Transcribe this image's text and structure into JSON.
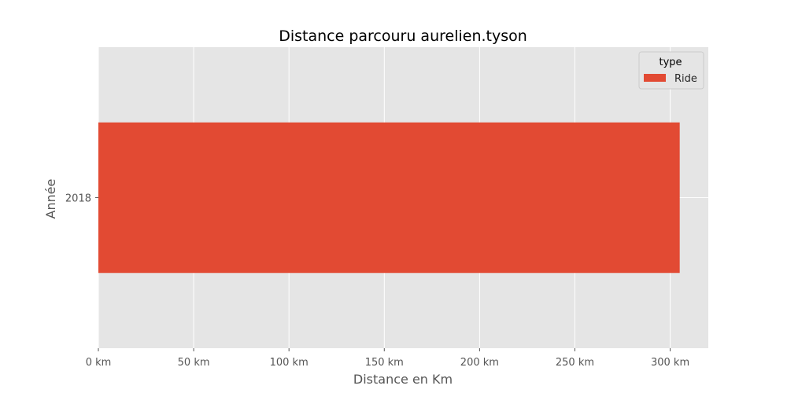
{
  "chart_data": {
    "type": "bar",
    "orientation": "horizontal",
    "title": "Distance parcouru aurelien.tyson",
    "xlabel": "Distance en Km",
    "ylabel": "Année",
    "categories": [
      "2018"
    ],
    "series": [
      {
        "name": "Ride",
        "values": [
          305
        ],
        "color": "#e24a33"
      }
    ],
    "xlim": [
      0,
      320
    ],
    "x_ticks": [
      0,
      50,
      100,
      150,
      200,
      250,
      300
    ],
    "x_tick_labels": [
      "0 km",
      "50 km",
      "100 km",
      "150 km",
      "200 km",
      "250 km",
      "300 km"
    ],
    "legend": {
      "title": "type",
      "position": "top-right"
    },
    "grid": true,
    "background_color": "#e5e5e5",
    "grid_color": "#ffffff"
  }
}
